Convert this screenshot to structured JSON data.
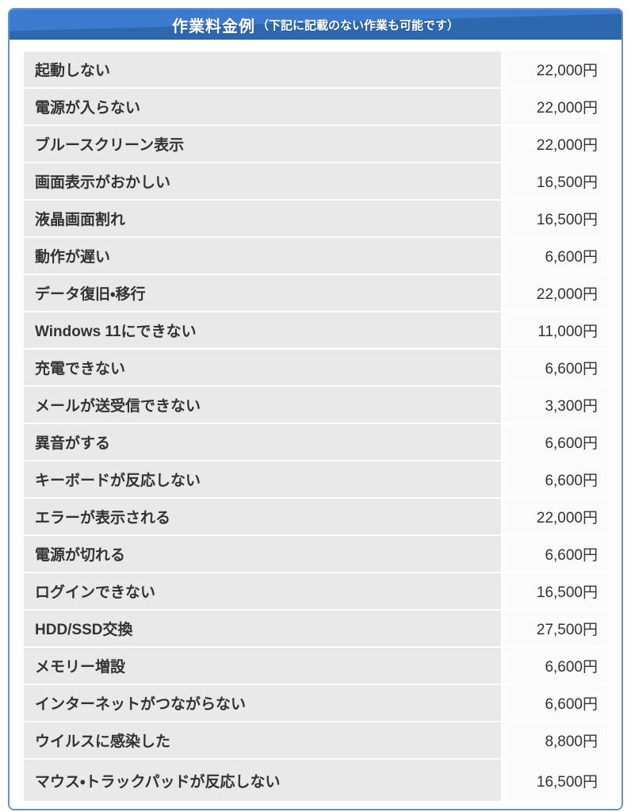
{
  "header": {
    "title": "作業料金例",
    "subtitle": "（下記に記載のない作業も可能です）"
  },
  "table": {
    "rows": [
      {
        "label": "起動しない",
        "price": "22,000円"
      },
      {
        "label": "電源が入らない",
        "price": "22,000円"
      },
      {
        "label": "ブルースクリーン表示",
        "price": "22,000円"
      },
      {
        "label": "画面表示がおかしい",
        "price": "16,500円"
      },
      {
        "label": "液晶画面割れ",
        "price": "16,500円"
      },
      {
        "label": "動作が遅い",
        "price": "6,600円"
      },
      {
        "label": "データ復旧・移行",
        "price": "22,000円"
      },
      {
        "label": "Windows 11にできない",
        "price": "11,000円"
      },
      {
        "label": "充電できない",
        "price": "6,600円"
      },
      {
        "label": "メールが送受信できない",
        "price": "3,300円"
      },
      {
        "label": "異音がする",
        "price": "6,600円"
      },
      {
        "label": "キーボードが反応しない",
        "price": "6,600円"
      },
      {
        "label": "エラーが表示される",
        "price": "22,000円"
      },
      {
        "label": "電源が切れる",
        "price": "6,600円"
      },
      {
        "label": "ログインできない",
        "price": "16,500円"
      },
      {
        "label": "HDD/SSD交換",
        "price": "27,500円"
      },
      {
        "label": "メモリー増設",
        "price": "6,600円"
      },
      {
        "label": "インターネットがつながらない",
        "price": "6,600円"
      },
      {
        "label": "ウイルスに感染した",
        "price": "8,800円"
      },
      {
        "label": "マウス・トラックパッドが反応しない",
        "price": "16,500円"
      }
    ]
  },
  "colors": {
    "header_blue_light": "#3b7ace",
    "header_blue_dark": "#2d67ae",
    "container_border": "#6b93bd",
    "row_label_bg": "#e9e9e9",
    "row_price_bg": "#fbfbfb",
    "text": "#333333",
    "header_text": "#ffffff"
  }
}
